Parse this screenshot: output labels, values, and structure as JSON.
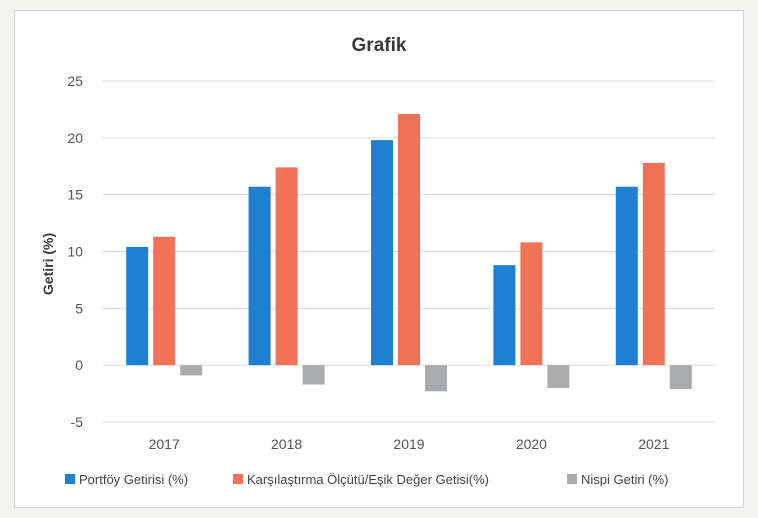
{
  "chart_data": {
    "type": "bar",
    "title": "Grafik",
    "xlabel": "",
    "ylabel": "Getiri (%)",
    "ylim": [
      -5,
      25
    ],
    "yticks": [
      25,
      20,
      15,
      10,
      5,
      0,
      -5
    ],
    "grid": true,
    "legend_position": "bottom",
    "categories": [
      "2017",
      "2018",
      "2019",
      "2020",
      "2021"
    ],
    "series": [
      {
        "name": "Portföy Getirisi (%)",
        "color": "#1f7fd1",
        "values": [
          10.4,
          15.7,
          19.8,
          8.8,
          15.7
        ]
      },
      {
        "name": "Karşılaştırma Ölçütü/Eşik Değer Getisi(%)",
        "color": "#f07358",
        "values": [
          11.3,
          17.4,
          22.1,
          10.8,
          17.8
        ]
      },
      {
        "name": "Nispi Getiri (%)",
        "color": "#a9abad",
        "values": [
          -0.9,
          -1.7,
          -2.3,
          -2.0,
          -2.1
        ]
      }
    ]
  }
}
